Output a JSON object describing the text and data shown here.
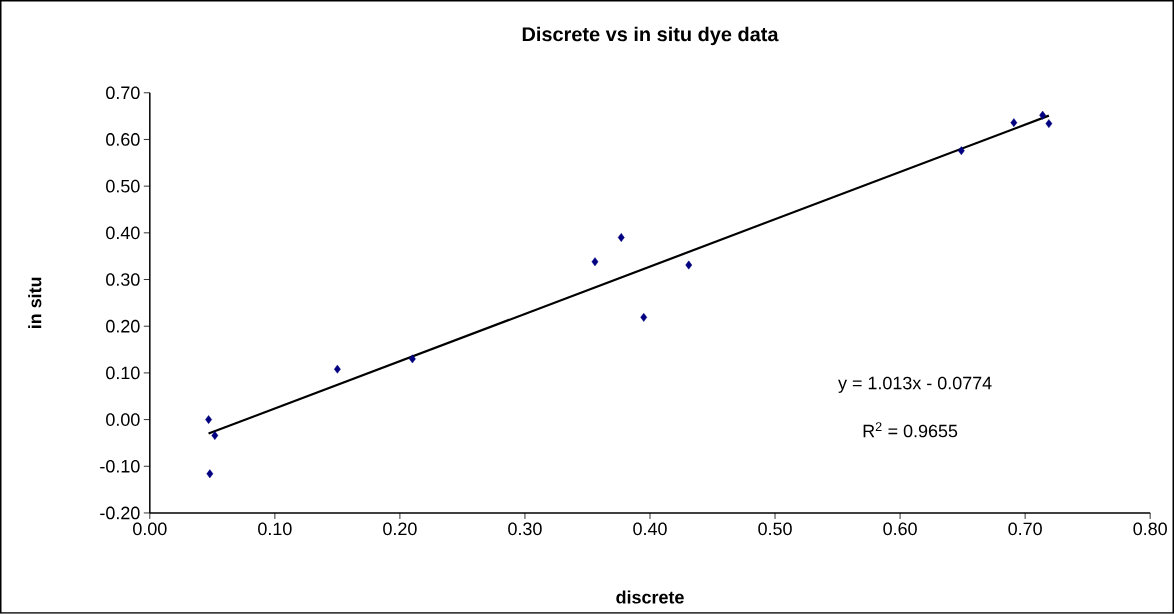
{
  "chart_data": {
    "type": "scatter",
    "title": "Discrete vs in situ dye data",
    "xlabel": "discrete",
    "ylabel": "in situ",
    "xlim": [
      0,
      0.8
    ],
    "ylim": [
      -0.2,
      0.7
    ],
    "xticks": [
      {
        "value": 0,
        "label": "0.00"
      },
      {
        "value": 0.1,
        "label": "0.10"
      },
      {
        "value": 0.2,
        "label": "0.20"
      },
      {
        "value": 0.3,
        "label": "0.30"
      },
      {
        "value": 0.4,
        "label": "0.40"
      },
      {
        "value": 0.5,
        "label": "0.50"
      },
      {
        "value": 0.6,
        "label": "0.60"
      },
      {
        "value": 0.7,
        "label": "0.70"
      },
      {
        "value": 0.8,
        "label": "0.80"
      }
    ],
    "yticks": [
      {
        "value": -0.2,
        "label": "-0.20"
      },
      {
        "value": -0.1,
        "label": "-0.10"
      },
      {
        "value": 0,
        "label": "0.00"
      },
      {
        "value": 0.1,
        "label": "0.10"
      },
      {
        "value": 0.2,
        "label": "0.20"
      },
      {
        "value": 0.3,
        "label": "0.30"
      },
      {
        "value": 0.4,
        "label": "0.40"
      },
      {
        "value": 0.5,
        "label": "0.50"
      },
      {
        "value": 0.6,
        "label": "0.60"
      },
      {
        "value": 0.7,
        "label": "0.70"
      }
    ],
    "grid": false,
    "series": [
      {
        "marker": "diamond",
        "color": "#000080",
        "x": [
          0.047,
          0.052,
          0.048,
          0.15,
          0.21,
          0.356,
          0.377,
          0.395,
          0.431,
          0.649,
          0.691,
          0.714,
          0.719
        ],
        "values": [
          0.0,
          -0.034,
          -0.116,
          0.108,
          0.13,
          0.338,
          0.39,
          0.219,
          0.331,
          0.576,
          0.636,
          0.652,
          0.634
        ]
      },
      {
        "type": "line",
        "color": "#000000",
        "x": [
          0.047,
          0.719
        ],
        "values": [
          -0.03,
          0.651
        ]
      }
    ],
    "annotations": [
      "y = 1.013x - 0.0774",
      "R$^{2}$ = 0.9655"
    ]
  }
}
